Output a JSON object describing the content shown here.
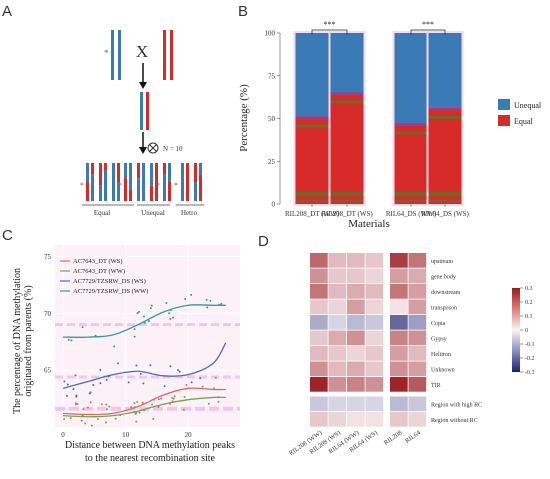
{
  "panels": {
    "a": {
      "label": "A",
      "cross_symbol": "X",
      "self_cross_note": "N = 10",
      "group_labels": [
        "Equal",
        "Unequal",
        "Hetro"
      ]
    },
    "b": {
      "label": "B",
      "sig_labels": [
        "***",
        "***"
      ],
      "xlabel": "Materials",
      "ylabel": "Percentage (%)",
      "legend": [
        "Unequal",
        "Equal"
      ]
    },
    "c": {
      "label": "C",
      "xlabel_line1": "Distance between DNA methylation peaks",
      "xlabel_line2": "to the nearest recombination site",
      "ylabel_line1": "The percentage of DNA methylation",
      "ylabel_line2": "originated from parents (%)",
      "legend": [
        "AC7643_DT (WS)",
        "AC7643_DT (WW)",
        "AC7729/TZSRW_DS (WS)",
        "AC7729/TZSRW_DS (WW)"
      ]
    },
    "d": {
      "label": "D",
      "col_labels": [
        "RIL208 (WW)",
        "RIL208 (WS)",
        "RIL64 (WW)",
        "RIL64 (WS)",
        "RIL208",
        "RIL64"
      ],
      "row_labels": [
        "upstream",
        "gene body",
        "downstream",
        "transposon",
        "Copia",
        "Gypsy",
        "Helitron",
        "Unknown",
        "TIR",
        "Region with high RC",
        "Region without RC"
      ],
      "colorbar_ticks": [
        "0.3",
        "0.2",
        "0.1",
        "0",
        "-0.1",
        "-0.2",
        "-0.3"
      ]
    }
  },
  "colors": {
    "unequal": "#3a7bb5",
    "equal": "#d62b28",
    "dark_green": "#6e6a2a",
    "purple": "#9b3a9b",
    "line_ws_dt": "#e06666",
    "line_ww_dt": "#6aa84f",
    "line_ws_ds": "#3d6fc4",
    "line_ww_ds": "#2f9e8e"
  },
  "chart_data": [
    {
      "type": "bar",
      "panel": "B",
      "categories": [
        "RIL208_DT (WW)",
        "RIL208_DT (WS)",
        "RIL64_DS (WW)",
        "RIL64_DS (WS)"
      ],
      "series": [
        {
          "name": "Equal",
          "values": [
            50,
            64,
            46,
            55
          ]
        },
        {
          "name": "Unequal",
          "values": [
            50,
            36,
            54,
            45
          ]
        }
      ],
      "ylim": [
        0,
        100
      ],
      "yticks": [
        0,
        25,
        50,
        75,
        100
      ],
      "legend_position": "right"
    },
    {
      "type": "scatter",
      "panel": "C",
      "xlim": [
        0,
        27
      ],
      "ylim": [
        60,
        76
      ],
      "xticks": [
        0,
        10,
        20
      ],
      "yticks": [
        65,
        70,
        75
      ],
      "series": [
        {
          "name": "AC7643_DT (WS)",
          "x": [
            0,
            4,
            8,
            12,
            16,
            20,
            24,
            26
          ],
          "y": [
            61.2,
            61.1,
            61.2,
            61.8,
            62.8,
            63.4,
            63.3,
            63.3
          ]
        },
        {
          "name": "AC7643_DT (WW)",
          "x": [
            0,
            4,
            8,
            12,
            16,
            20,
            24,
            26
          ],
          "y": [
            61.0,
            60.9,
            61.0,
            61.4,
            62.0,
            62.4,
            62.6,
            62.6
          ]
        },
        {
          "name": "AC7729/TZSRW_DS (WS)",
          "x": [
            0,
            4,
            8,
            12,
            16,
            20,
            24,
            26
          ],
          "y": [
            63.4,
            64.0,
            64.6,
            64.9,
            64.5,
            64.6,
            65.6,
            67.4
          ]
        },
        {
          "name": "AC7729/TZSRW_DS (WW)",
          "x": [
            0,
            4,
            8,
            12,
            16,
            20,
            24,
            26
          ],
          "y": [
            67.9,
            67.9,
            68.1,
            69.0,
            70.1,
            70.7,
            70.7,
            70.7
          ]
        }
      ]
    },
    {
      "type": "heatmap",
      "panel": "D",
      "rows": [
        "upstream",
        "gene body",
        "downstream",
        "transposon",
        "Copia",
        "Gypsy",
        "Helitron",
        "Unknown",
        "TIR",
        "Region with high RC",
        "Region without RC"
      ],
      "columns": [
        "RIL208 (WW)",
        "RIL208 (WS)",
        "RIL64 (WW)",
        "RIL64 (WS)",
        "RIL208",
        "RIL64"
      ],
      "values": [
        [
          0.2,
          0.08,
          0.08,
          0.06,
          0.26,
          0.18
        ],
        [
          0.14,
          0.06,
          0.06,
          0.04,
          0.12,
          0.1
        ],
        [
          0.18,
          0.08,
          0.1,
          0.08,
          0.18,
          0.12
        ],
        [
          0.06,
          0.04,
          0.12,
          0.04,
          0.02,
          0.12
        ],
        [
          -0.1,
          -0.04,
          -0.08,
          -0.06,
          -0.2,
          -0.12
        ],
        [
          0.06,
          0.1,
          0.14,
          0.04,
          0.16,
          0.14
        ],
        [
          0.08,
          0.06,
          0.04,
          0.06,
          0.12,
          0.08
        ],
        [
          0.14,
          0.08,
          0.1,
          0.06,
          0.14,
          0.12
        ],
        [
          0.3,
          0.14,
          0.16,
          0.14,
          0.32,
          0.22
        ],
        [
          -0.06,
          -0.04,
          -0.04,
          -0.04,
          -0.08,
          -0.06
        ],
        [
          0.06,
          0.04,
          0.02,
          0.02,
          0.06,
          0.04
        ]
      ],
      "colorbar_range": [
        -0.3,
        0.3
      ]
    }
  ]
}
